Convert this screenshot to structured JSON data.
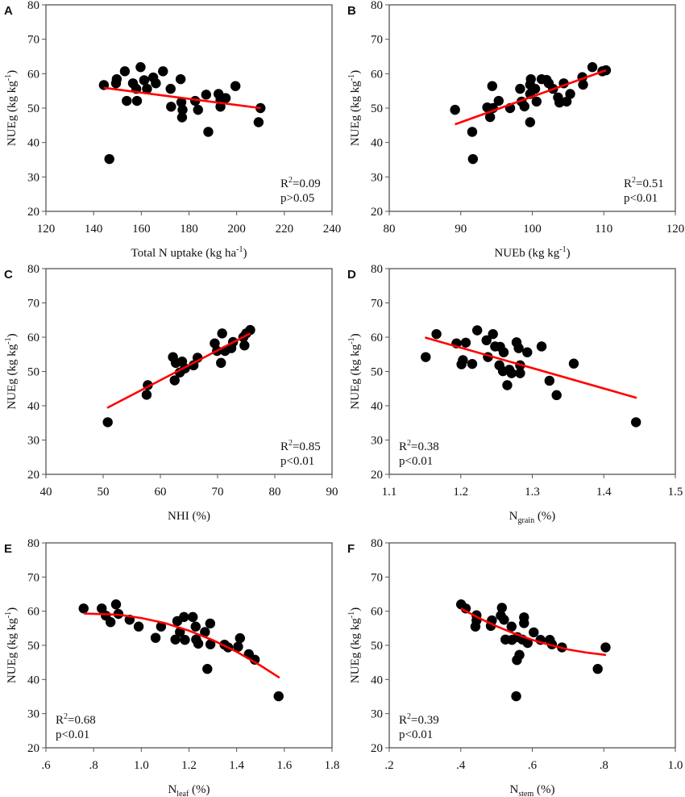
{
  "colors": {
    "points": "#000000",
    "fit": "#ff0000",
    "axis": "#555555"
  },
  "chart_data": [
    {
      "type": "scatter",
      "panel": "A",
      "xlabel": {
        "text": "Total N uptake (kg ha",
        "sup": "-1",
        "sub": "",
        "after": ")"
      },
      "ylabel": {
        "text": "NUEg (kg kg",
        "sup": "-1",
        "after": ")"
      },
      "xlim": [
        120,
        240
      ],
      "ylim": [
        20,
        80
      ],
      "xticks": [
        120,
        140,
        160,
        180,
        200,
        220,
        240
      ],
      "xtick_labels": [
        "120",
        "140",
        "160",
        "180",
        "200",
        "220",
        "240"
      ],
      "yticks": [
        20,
        30,
        40,
        50,
        60,
        70,
        80
      ],
      "ytick_labels": [
        "20",
        "30",
        "40",
        "50",
        "60",
        "70",
        "80"
      ],
      "stats": {
        "r2": "R",
        "r2_sup": "2",
        "r2_value": "=0.09",
        "p": "p>0.05"
      },
      "stats_position": "bottom-right",
      "fit": {
        "type": "linear",
        "x": [
          144.3,
          210.0
        ],
        "y": [
          55.9,
          50.0
        ]
      },
      "points": [
        [
          144.3,
          56.7
        ],
        [
          146.6,
          35.2
        ],
        [
          149.4,
          57.2
        ],
        [
          149.7,
          58.4
        ],
        [
          153.1,
          60.7
        ],
        [
          153.9,
          52.1
        ],
        [
          156.5,
          57.2
        ],
        [
          157.9,
          55.6
        ],
        [
          158.2,
          52.1
        ],
        [
          159.7,
          61.9
        ],
        [
          161.2,
          58.1
        ],
        [
          162.4,
          55.6
        ],
        [
          165.0,
          58.9
        ],
        [
          166.1,
          57.2
        ],
        [
          169.1,
          60.7
        ],
        [
          172.3,
          55.6
        ],
        [
          172.5,
          50.4
        ],
        [
          176.5,
          58.4
        ],
        [
          176.8,
          51.7
        ],
        [
          177.3,
          49.5
        ],
        [
          177.1,
          47.3
        ],
        [
          182.6,
          52.1
        ],
        [
          183.8,
          49.5
        ],
        [
          187.2,
          53.9
        ],
        [
          188.1,
          43.1
        ],
        [
          192.4,
          54.1
        ],
        [
          193.2,
          52.3
        ],
        [
          193.2,
          50.4
        ],
        [
          195.4,
          52.9
        ],
        [
          199.5,
          56.4
        ],
        [
          209.2,
          45.9
        ],
        [
          210.0,
          50.0
        ]
      ]
    },
    {
      "type": "scatter",
      "panel": "B",
      "xlabel": {
        "text": "NUEb (kg kg",
        "sup": "-1",
        "sub": "",
        "after": ")"
      },
      "ylabel": {
        "text": "NUEg (kg kg",
        "sup": "-1",
        "after": ")"
      },
      "xlim": [
        80,
        120
      ],
      "ylim": [
        20,
        80
      ],
      "xticks": [
        80,
        90,
        100,
        110,
        120
      ],
      "xtick_labels": [
        "80",
        "90",
        "100",
        "110",
        "120"
      ],
      "yticks": [
        20,
        30,
        40,
        50,
        60,
        70,
        80
      ],
      "ytick_labels": [
        "20",
        "30",
        "40",
        "50",
        "60",
        "70",
        "80"
      ],
      "stats": {
        "r2": "R",
        "r2_sup": "2",
        "r2_value": "=0.51",
        "p": "p<0.01"
      },
      "stats_position": "bottom-right",
      "fit": {
        "type": "linear",
        "x": [
          89.2,
          110.3
        ],
        "y": [
          45.3,
          61.0
        ]
      },
      "points": [
        [
          89.2,
          49.5
        ],
        [
          91.6,
          43.1
        ],
        [
          91.7,
          35.2
        ],
        [
          93.7,
          50.2
        ],
        [
          94.1,
          47.4
        ],
        [
          94.4,
          56.4
        ],
        [
          94.5,
          50.0
        ],
        [
          95.3,
          52.1
        ],
        [
          96.9,
          50.0
        ],
        [
          98.3,
          55.6
        ],
        [
          98.5,
          51.9
        ],
        [
          98.9,
          50.5
        ],
        [
          99.8,
          58.4
        ],
        [
          99.7,
          56.8
        ],
        [
          99.7,
          54.1
        ],
        [
          99.7,
          45.9
        ],
        [
          100.4,
          55.6
        ],
        [
          100.6,
          51.9
        ],
        [
          101.3,
          58.4
        ],
        [
          102.0,
          58.2
        ],
        [
          102.3,
          57.2
        ],
        [
          102.9,
          55.6
        ],
        [
          103.6,
          53.1
        ],
        [
          103.8,
          51.6
        ],
        [
          104.4,
          57.2
        ],
        [
          104.8,
          51.9
        ],
        [
          105.3,
          54.1
        ],
        [
          107.0,
          59.0
        ],
        [
          107.1,
          56.8
        ],
        [
          108.4,
          61.9
        ],
        [
          109.8,
          60.7
        ],
        [
          110.3,
          61.0
        ]
      ]
    },
    {
      "type": "scatter",
      "panel": "C",
      "xlabel": {
        "text": "NHI (%)",
        "sup": "",
        "sub": "",
        "after": ""
      },
      "ylabel": {
        "text": "NUEg (kg kg",
        "sup": "-1",
        "after": ")"
      },
      "xlim": [
        40,
        90
      ],
      "ylim": [
        20,
        80
      ],
      "xticks": [
        40,
        50,
        60,
        70,
        80,
        90
      ],
      "xtick_labels": [
        "40",
        "50",
        "60",
        "70",
        "80",
        "90"
      ],
      "yticks": [
        20,
        30,
        40,
        50,
        60,
        70,
        80
      ],
      "ytick_labels": [
        "20",
        "30",
        "40",
        "50",
        "60",
        "70",
        "80"
      ],
      "stats": {
        "r2": "R",
        "r2_sup": "2",
        "r2_value": "=0.85",
        "p": "p<0.01"
      },
      "stats_position": "bottom-right",
      "fit": {
        "type": "linear",
        "x": [
          50.7,
          75.7
        ],
        "y": [
          39.4,
          61.1
        ]
      },
      "points": [
        [
          50.8,
          35.2
        ],
        [
          57.8,
          46.0
        ],
        [
          57.6,
          43.2
        ],
        [
          62.2,
          54.2
        ],
        [
          62.5,
          47.4
        ],
        [
          62.7,
          52.5
        ],
        [
          63.4,
          49.7
        ],
        [
          63.8,
          52.9
        ],
        [
          64.3,
          50.9
        ],
        [
          65.8,
          51.8
        ],
        [
          66.5,
          54.0
        ],
        [
          69.5,
          58.2
        ],
        [
          69.9,
          56.0
        ],
        [
          70.8,
          61.1
        ],
        [
          70.6,
          52.5
        ],
        [
          71.3,
          56.0
        ],
        [
          72.7,
          58.6
        ],
        [
          72.4,
          56.8
        ],
        [
          74.7,
          57.6
        ],
        [
          74.5,
          60.0
        ],
        [
          75.7,
          62.1
        ],
        [
          75.0,
          61.1
        ]
      ]
    },
    {
      "type": "scatter",
      "panel": "D",
      "xlabel": {
        "text": "N",
        "sup": "",
        "sub": "grain",
        "after": " (%)"
      },
      "ylabel": {
        "text": "NUEg (kg kg",
        "sup": "-1",
        "after": ")"
      },
      "xlim": [
        1.1,
        1.5
      ],
      "ylim": [
        20,
        80
      ],
      "xticks": [
        1.1,
        1.2,
        1.3,
        1.4,
        1.5
      ],
      "xtick_labels": [
        "1.1",
        "1.2",
        "1.3",
        "1.4",
        "1.5"
      ],
      "yticks": [
        20,
        30,
        40,
        50,
        60,
        70,
        80
      ],
      "ytick_labels": [
        "20",
        "30",
        "40",
        "50",
        "60",
        "70",
        "80"
      ],
      "stats": {
        "r2": "R",
        "r2_sup": "2",
        "r2_value": "=0.38",
        "p": "p<0.01"
      },
      "stats_position": "bottom-left",
      "fit": {
        "type": "linear",
        "x": [
          1.15,
          1.446
        ],
        "y": [
          59.9,
          42.3
        ]
      },
      "points": [
        [
          1.151,
          54.2
        ],
        [
          1.166,
          60.9
        ],
        [
          1.194,
          58.2
        ],
        [
          1.207,
          58.4
        ],
        [
          1.201,
          52.1
        ],
        [
          1.203,
          53.3
        ],
        [
          1.216,
          52.2
        ],
        [
          1.223,
          62.0
        ],
        [
          1.236,
          59.1
        ],
        [
          1.245,
          60.9
        ],
        [
          1.238,
          54.2
        ],
        [
          1.248,
          57.3
        ],
        [
          1.255,
          57.2
        ],
        [
          1.26,
          55.6
        ],
        [
          1.254,
          51.8
        ],
        [
          1.259,
          50.1
        ],
        [
          1.265,
          46.0
        ],
        [
          1.268,
          50.5
        ],
        [
          1.271,
          49.5
        ],
        [
          1.278,
          58.5
        ],
        [
          1.281,
          56.8
        ],
        [
          1.283,
          51.8
        ],
        [
          1.283,
          49.5
        ],
        [
          1.293,
          55.6
        ],
        [
          1.313,
          57.3
        ],
        [
          1.324,
          47.3
        ],
        [
          1.334,
          43.1
        ],
        [
          1.358,
          52.3
        ],
        [
          1.445,
          35.2
        ]
      ]
    },
    {
      "type": "scatter",
      "panel": "E",
      "xlabel": {
        "text": "N",
        "sup": "",
        "sub": "leaf",
        "after": " (%)"
      },
      "ylabel": {
        "text": "NUEg (kg kg",
        "sup": "-1",
        "after": ")"
      },
      "xlim": [
        0.6,
        1.8
      ],
      "ylim": [
        20,
        80
      ],
      "xticks": [
        0.6,
        0.8,
        1.0,
        1.2,
        1.4,
        1.6,
        1.8
      ],
      "xtick_labels": [
        ".6",
        ".8",
        "1.0",
        "1.2",
        "1.4",
        "1.6",
        "1.8"
      ],
      "yticks": [
        20,
        30,
        40,
        50,
        60,
        70,
        80
      ],
      "ytick_labels": [
        "20",
        "30",
        "40",
        "50",
        "60",
        "70",
        "80"
      ],
      "stats": {
        "r2": "R",
        "r2_sup": "2",
        "r2_value": "=0.68",
        "p": "p<0.01"
      },
      "stats_position": "bottom-left",
      "fit": {
        "type": "quadratic",
        "x": [
          0.76,
          0.9,
          1.0,
          1.1,
          1.2,
          1.3,
          1.4,
          1.5,
          1.58
        ],
        "y": [
          59.3,
          59.0,
          58.0,
          56.5,
          54.3,
          51.5,
          48.1,
          44.1,
          40.5
        ]
      },
      "points": [
        [
          0.758,
          60.8
        ],
        [
          0.834,
          60.8
        ],
        [
          0.851,
          58.7
        ],
        [
          0.871,
          56.8
        ],
        [
          0.894,
          62.0
        ],
        [
          0.904,
          59.2
        ],
        [
          0.951,
          57.5
        ],
        [
          0.989,
          55.5
        ],
        [
          1.06,
          52.2
        ],
        [
          1.083,
          55.5
        ],
        [
          1.151,
          57.1
        ],
        [
          1.143,
          51.7
        ],
        [
          1.162,
          53.9
        ],
        [
          1.179,
          58.3
        ],
        [
          1.183,
          51.6
        ],
        [
          1.216,
          58.3
        ],
        [
          1.228,
          55.5
        ],
        [
          1.23,
          51.7
        ],
        [
          1.239,
          50.5
        ],
        [
          1.267,
          53.9
        ],
        [
          1.289,
          56.4
        ],
        [
          1.277,
          43.1
        ],
        [
          1.29,
          50.3
        ],
        [
          1.349,
          50.2
        ],
        [
          1.364,
          49.4
        ],
        [
          1.406,
          49.6
        ],
        [
          1.414,
          52.1
        ],
        [
          1.451,
          47.4
        ],
        [
          1.476,
          45.8
        ],
        [
          1.576,
          35.1
        ]
      ]
    },
    {
      "type": "scatter",
      "panel": "F",
      "xlabel": {
        "text": "N",
        "sup": "",
        "sub": "stem",
        "after": " (%)"
      },
      "ylabel": {
        "text": "NUEg (kg kg",
        "sup": "-1",
        "after": ")"
      },
      "xlim": [
        0.2,
        1.0
      ],
      "ylim": [
        20,
        80
      ],
      "xticks": [
        0.2,
        0.4,
        0.6,
        0.8,
        1.0
      ],
      "xtick_labels": [
        ".2",
        ".4",
        ".6",
        ".8",
        "1.0"
      ],
      "yticks": [
        20,
        30,
        40,
        50,
        60,
        70,
        80
      ],
      "ytick_labels": [
        "20",
        "30",
        "40",
        "50",
        "60",
        "70",
        "80"
      ],
      "stats": {
        "r2": "R",
        "r2_sup": "2",
        "r2_value": "=0.39",
        "p": "p<0.01"
      },
      "stats_position": "bottom-left",
      "fit": {
        "type": "quadratic",
        "x": [
          0.4,
          0.45,
          0.5,
          0.55,
          0.6,
          0.65,
          0.7,
          0.75,
          0.806
        ],
        "y": [
          60.8,
          58.05,
          55.6,
          53.45,
          51.6,
          50.1,
          48.8,
          47.9,
          47.2
        ]
      },
      "points": [
        [
          0.401,
          62.0
        ],
        [
          0.414,
          60.8
        ],
        [
          0.444,
          58.8
        ],
        [
          0.444,
          57.3
        ],
        [
          0.441,
          55.5
        ],
        [
          0.487,
          57.3
        ],
        [
          0.484,
          55.7
        ],
        [
          0.515,
          61.0
        ],
        [
          0.512,
          58.7
        ],
        [
          0.521,
          57.5
        ],
        [
          0.542,
          55.5
        ],
        [
          0.525,
          51.7
        ],
        [
          0.543,
          51.6
        ],
        [
          0.558,
          52.4
        ],
        [
          0.572,
          51.7
        ],
        [
          0.587,
          50.7
        ],
        [
          0.577,
          58.2
        ],
        [
          0.577,
          56.5
        ],
        [
          0.564,
          47.2
        ],
        [
          0.557,
          45.7
        ],
        [
          0.555,
          35.1
        ],
        [
          0.604,
          53.8
        ],
        [
          0.623,
          51.6
        ],
        [
          0.649,
          51.6
        ],
        [
          0.655,
          50.3
        ],
        [
          0.683,
          49.4
        ],
        [
          0.783,
          43.1
        ],
        [
          0.805,
          49.4
        ]
      ]
    }
  ]
}
